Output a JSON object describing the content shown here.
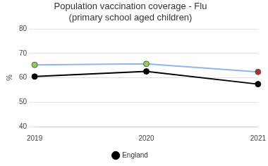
{
  "chart_data": {
    "type": "line",
    "title": "Population vaccination coverage - Flu",
    "subtitle": "(primary school aged children)",
    "y_label": "%",
    "categories": [
      "2019",
      "2020",
      "2021"
    ],
    "series": [
      {
        "name": "England",
        "color": "#000000",
        "values": [
          60.5,
          62.6,
          57.4
        ],
        "marker": "circle"
      },
      {
        "color": "#8ab8e8",
        "colors": [
          "#92d050",
          "#92d050",
          "#c0282d"
        ],
        "values": [
          65.3,
          65.7,
          62.4
        ],
        "marker": "circle"
      }
    ],
    "ylim": [
      40,
      80
    ],
    "yticks": [
      40,
      50,
      60,
      70,
      80
    ],
    "grid": true,
    "legend": "bottom"
  }
}
